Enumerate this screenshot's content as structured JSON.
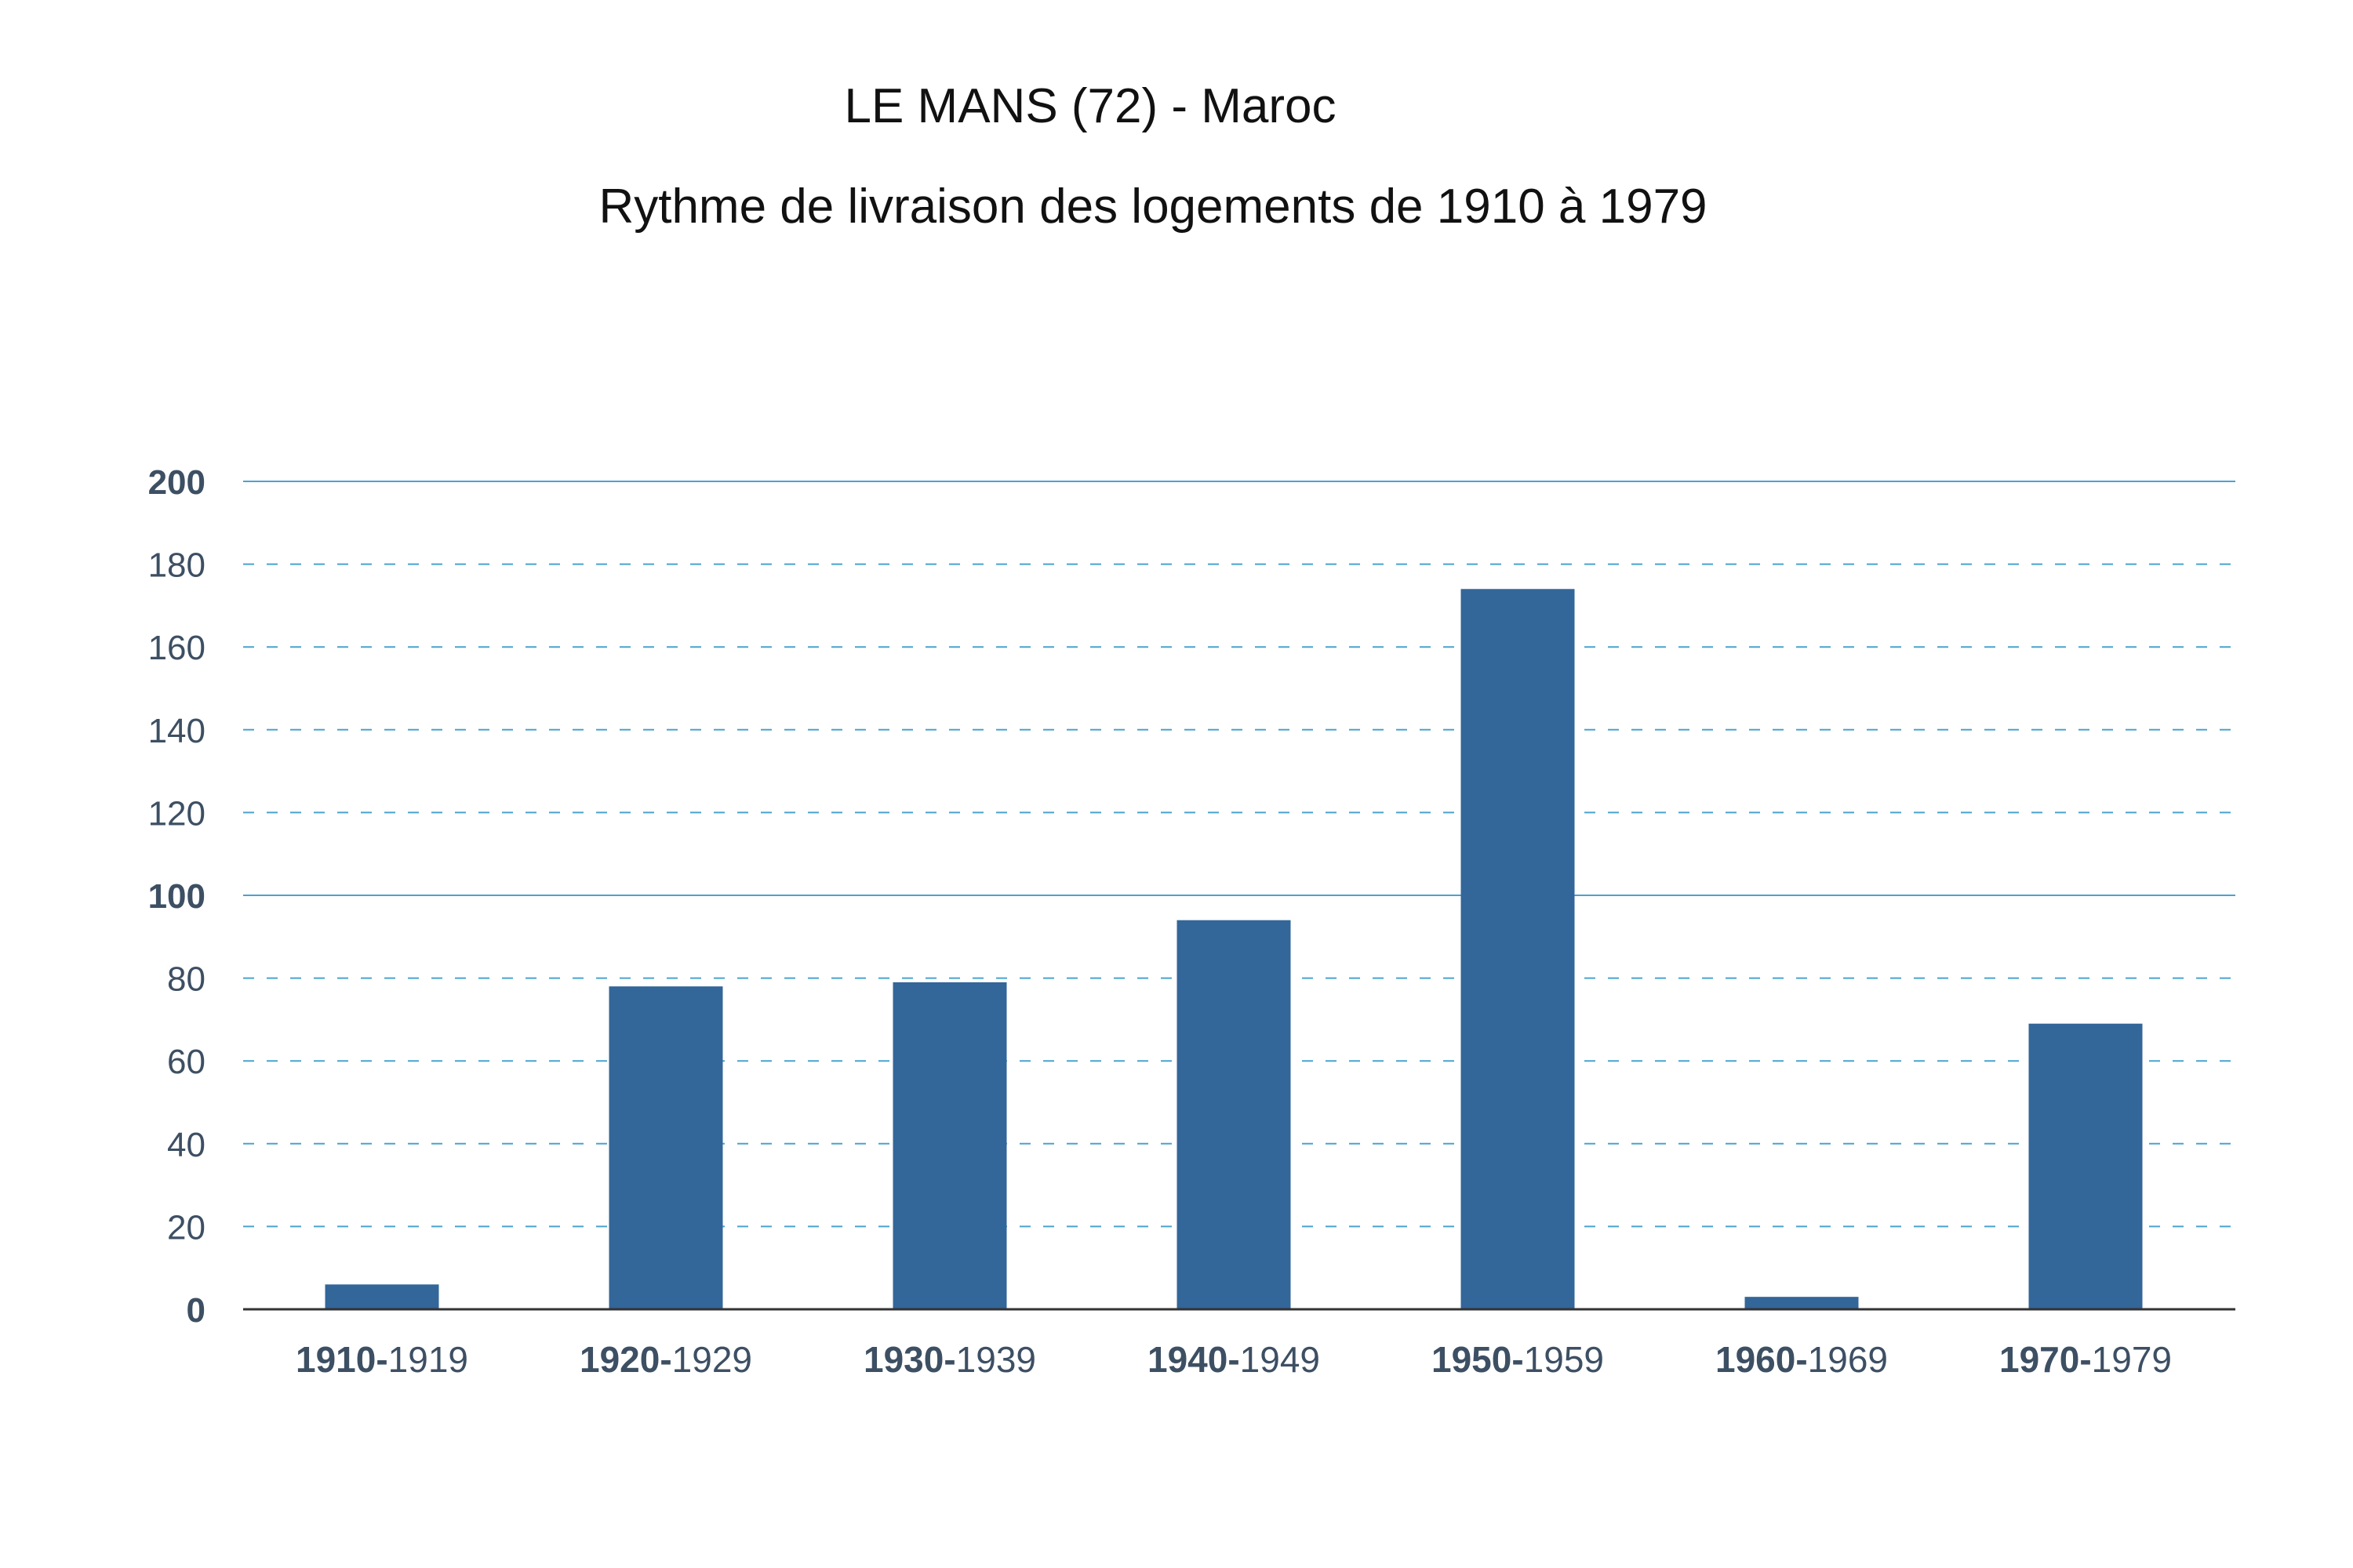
{
  "chart_data": {
    "type": "bar",
    "title": "LE  MANS (72) - Maroc",
    "subtitle": "Rythme de livraison des logements de 1910 à 1979",
    "xlabel": "",
    "ylabel": "",
    "ylim": [
      0,
      200
    ],
    "yticks": [
      "0",
      "20",
      "40",
      "60",
      "80",
      "100",
      "120",
      "140",
      "160",
      "180",
      "200"
    ],
    "yticks_bold": [
      "0",
      "100",
      "200"
    ],
    "grid": true,
    "legend": "none",
    "categories": [
      {
        "start": "1910-",
        "end": "1919"
      },
      {
        "start": "1920-",
        "end": "1929"
      },
      {
        "start": "1930-",
        "end": "1939"
      },
      {
        "start": "1940-",
        "end": "1949"
      },
      {
        "start": "1950-",
        "end": "1959"
      },
      {
        "start": "1960-",
        "end": "1969"
      },
      {
        "start": "1970-",
        "end": "1979"
      }
    ],
    "values": [
      6,
      78,
      79,
      94,
      174,
      3,
      69
    ],
    "colors": {
      "bar": "#336699",
      "grid": "#4aa3cf",
      "axis": "#333333",
      "tick_label": "#3d4f63"
    }
  }
}
